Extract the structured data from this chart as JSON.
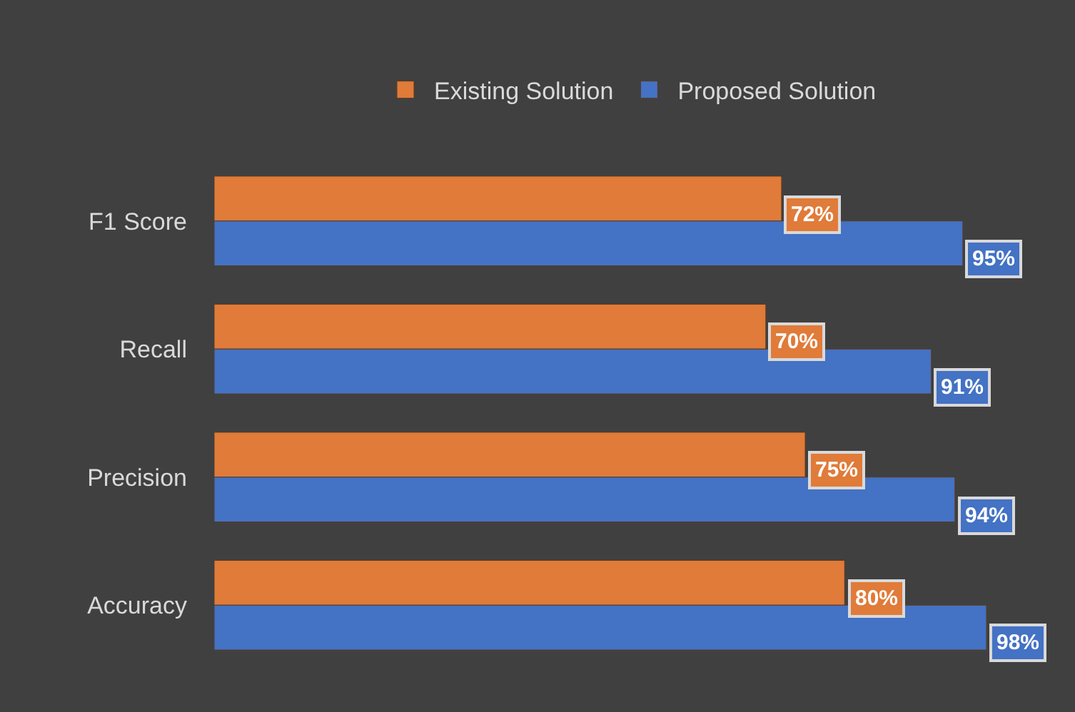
{
  "chart_data": {
    "type": "bar",
    "orientation": "horizontal",
    "categories": [
      "F1 Score",
      "Recall",
      "Precision",
      "Accuracy"
    ],
    "series": [
      {
        "name": "Existing Solution",
        "color": "#e07b39",
        "values": [
          72,
          70,
          75,
          80
        ],
        "value_labels": [
          "72%",
          "70%",
          "75%",
          "80%"
        ]
      },
      {
        "name": "Proposed Solution",
        "color": "#4472c4",
        "values": [
          95,
          91,
          94,
          98
        ],
        "value_labels": [
          "95%",
          "91%",
          "94%",
          "98%"
        ]
      }
    ],
    "legend": "top",
    "grid": false
  }
}
